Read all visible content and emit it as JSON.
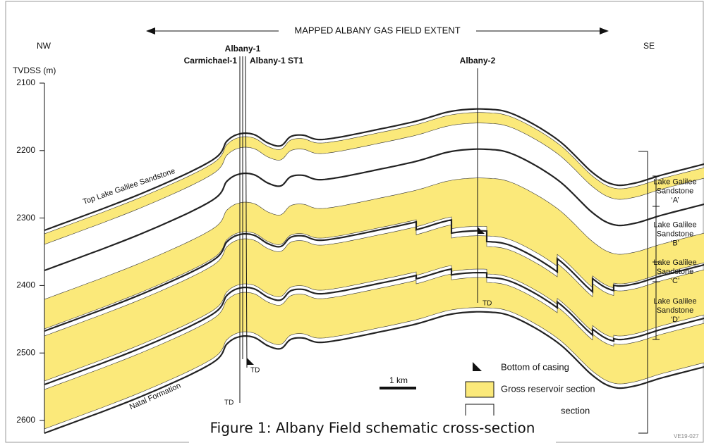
{
  "header": {
    "extent_label": "MAPPED ALBANY GAS FIELD EXTENT",
    "left_direction": "NW",
    "right_direction": "SE"
  },
  "axis": {
    "title": "TVDSS (m)",
    "ticks": [
      2100,
      2200,
      2300,
      2400,
      2500,
      2600
    ]
  },
  "wells": [
    {
      "label": "Albany-1"
    },
    {
      "label": "Carmichael-1"
    },
    {
      "label": "Albany-1 ST1"
    },
    {
      "label": "Albany-2"
    }
  ],
  "td_labels": [
    "TD",
    "TD",
    "TD"
  ],
  "horizon_labels": [
    "Top Lake Galilee Sandstone",
    "Natal Formation"
  ],
  "zones": [
    {
      "lines": [
        "Lake Galilee",
        "Sandstone",
        "‘A’"
      ]
    },
    {
      "lines": [
        "Lake Galilee",
        "Sandstone",
        "‘B’"
      ]
    },
    {
      "lines": [
        "Lake Galilee",
        "Sandstone",
        "‘C’"
      ]
    },
    {
      "lines": [
        "Lake Galilee",
        "Sandstone",
        "‘D’"
      ]
    }
  ],
  "scale_bar": "1 km",
  "legend": [
    "Bottom of casing",
    "Gross reservoir section",
    "section"
  ],
  "caption": "Figure 1: Albany Field schematic cross-section",
  "reference": "VE19-027"
}
